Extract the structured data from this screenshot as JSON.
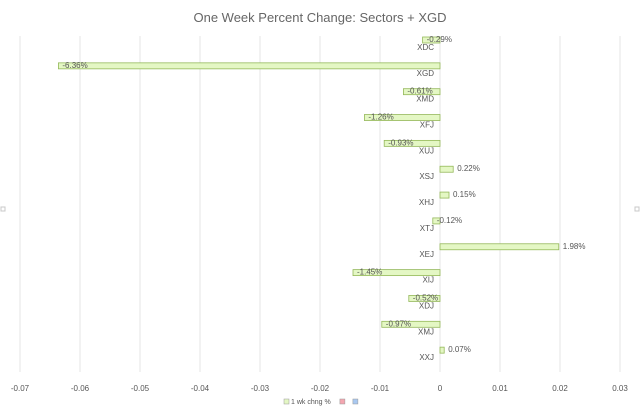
{
  "chart_data": {
    "type": "bar",
    "orientation": "horizontal",
    "title": "One Week Percent Change: Sectors + XGD",
    "xlabel": "",
    "ylabel": "",
    "xlim": [
      -0.07,
      0.03
    ],
    "x_ticks": [
      "-0.07",
      "-0.06",
      "-0.05",
      "-0.04",
      "-0.03",
      "-0.02",
      "-0.01",
      "0",
      "0.01",
      "0.02",
      "0.03"
    ],
    "x_tick_values": [
      -0.07,
      -0.06,
      -0.05,
      -0.04,
      -0.03,
      -0.02,
      -0.01,
      0,
      0.01,
      0.02,
      0.03
    ],
    "grid": "vertical",
    "categories": [
      "XDC",
      "XGD",
      "XMD",
      "XFJ",
      "XUJ",
      "XSJ",
      "XHJ",
      "XTJ",
      "XEJ",
      "XIJ",
      "XDJ",
      "XMJ",
      "XXJ"
    ],
    "series": [
      {
        "name": "1 wk chng %",
        "values": [
          -0.0029,
          -0.0636,
          -0.0061,
          -0.0126,
          -0.0093,
          0.0022,
          0.0015,
          -0.0012,
          0.0198,
          -0.0145,
          -0.0052,
          -0.0097,
          0.0007
        ],
        "labels": [
          "-0.29%",
          "-6.36%",
          "-0.61%",
          "-1.26%",
          "-0.93%",
          "0.22%",
          "0.15%",
          "-0.12%",
          "1.98%",
          "-1.45%",
          "-0.52%",
          "-0.97%",
          "0.07%"
        ]
      }
    ],
    "legend": {
      "position": "bottom",
      "entries": [
        {
          "label": "1 wk chng %",
          "color": "#e4f7c4"
        },
        {
          "label": "",
          "color": "#f4a6b0"
        },
        {
          "label": "",
          "color": "#a9c8f0"
        }
      ]
    },
    "colors": {
      "bar_fill": "#e4f7c4",
      "bar_stroke": "#94b85a",
      "grid": "#e6e6e6",
      "text": "#555555",
      "title": "#666666"
    }
  }
}
